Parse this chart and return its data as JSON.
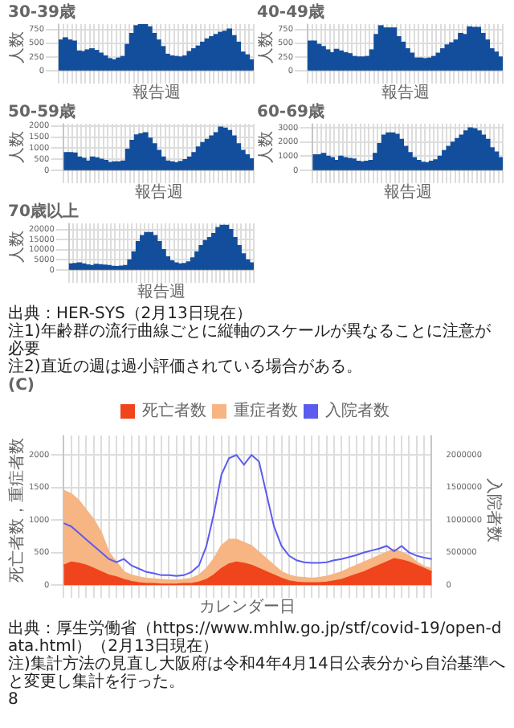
{
  "chart_data": [
    {
      "type": "bar",
      "title": "30-39歳",
      "xlabel": "報告週",
      "ylabel": "人数",
      "color": "#124e9c",
      "grid": true,
      "ylim": [
        0,
        850
      ],
      "yticks": [
        0,
        250,
        500,
        750
      ],
      "categories": [
        null,
        null,
        null,
        null,
        null,
        null,
        null,
        null,
        null,
        null,
        null,
        null,
        null,
        null,
        null,
        null,
        null,
        null,
        null,
        null,
        null,
        null,
        null,
        null,
        null,
        null,
        null,
        null,
        null,
        null,
        null,
        null,
        null,
        null,
        null,
        null,
        null,
        null,
        null,
        null,
        null,
        null,
        null,
        null
      ],
      "values": [
        560,
        600,
        560,
        540,
        360,
        350,
        380,
        400,
        370,
        320,
        270,
        220,
        200,
        230,
        260,
        480,
        680,
        820,
        850,
        840,
        800,
        680,
        560,
        440,
        300,
        270,
        260,
        250,
        270,
        350,
        400,
        450,
        520,
        580,
        620,
        660,
        700,
        720,
        760,
        640,
        520,
        340,
        290,
        200
      ]
    },
    {
      "type": "bar",
      "title": "40-49歳",
      "xlabel": "報告週",
      "ylabel": "人数",
      "color": "#124e9c",
      "grid": true,
      "ylim": [
        0,
        850
      ],
      "yticks": [
        0,
        250,
        500,
        750
      ],
      "categories": [
        null,
        null,
        null,
        null,
        null,
        null,
        null,
        null,
        null,
        null,
        null,
        null,
        null,
        null,
        null,
        null,
        null,
        null,
        null,
        null,
        null,
        null,
        null,
        null,
        null,
        null,
        null,
        null,
        null,
        null,
        null,
        null,
        null,
        null,
        null,
        null,
        null,
        null,
        null,
        null,
        null,
        null,
        null,
        null
      ],
      "values": [
        540,
        540,
        480,
        440,
        380,
        330,
        390,
        360,
        330,
        310,
        260,
        250,
        250,
        260,
        380,
        660,
        820,
        780,
        780,
        780,
        620,
        520,
        400,
        320,
        230,
        230,
        220,
        230,
        260,
        320,
        400,
        470,
        510,
        560,
        680,
        660,
        800,
        790,
        790,
        680,
        560,
        400,
        340,
        250
      ]
    },
    {
      "type": "bar",
      "title": "50-59歳",
      "xlabel": "報告週",
      "ylabel": "人数",
      "color": "#124e9c",
      "grid": true,
      "ylim": [
        0,
        2100
      ],
      "yticks": [
        0,
        500,
        1000,
        1500,
        2000
      ],
      "categories": [
        null,
        null,
        null,
        null,
        null,
        null,
        null,
        null,
        null,
        null,
        null,
        null,
        null,
        null,
        null,
        null,
        null,
        null,
        null,
        null,
        null,
        null,
        null,
        null,
        null,
        null,
        null,
        null,
        null,
        null,
        null,
        null,
        null,
        null,
        null,
        null,
        null,
        null,
        null,
        null,
        null,
        null,
        null
      ],
      "values": [
        800,
        800,
        780,
        600,
        550,
        420,
        600,
        560,
        500,
        450,
        360,
        380,
        380,
        420,
        950,
        1350,
        1600,
        1650,
        1700,
        1450,
        1200,
        900,
        600,
        420,
        380,
        350,
        400,
        480,
        600,
        800,
        1050,
        1250,
        1400,
        1550,
        1700,
        1950,
        1900,
        1800,
        1550,
        1200,
        900,
        700,
        520
      ]
    },
    {
      "type": "bar",
      "title": "60-69歳",
      "xlabel": "報告週",
      "ylabel": "人数",
      "color": "#124e9c",
      "grid": true,
      "ylim": [
        0,
        3300
      ],
      "yticks": [
        0,
        1000,
        2000,
        3000
      ],
      "categories": [
        null,
        null,
        null,
        null,
        null,
        null,
        null,
        null,
        null,
        null,
        null,
        null,
        null,
        null,
        null,
        null,
        null,
        null,
        null,
        null,
        null,
        null,
        null,
        null,
        null,
        null,
        null,
        null,
        null,
        null,
        null,
        null,
        null,
        null,
        null,
        null,
        null,
        null,
        null,
        null,
        null,
        null,
        null,
        null
      ],
      "values": [
        1100,
        1100,
        1200,
        1000,
        900,
        700,
        1000,
        900,
        850,
        800,
        650,
        600,
        650,
        700,
        1200,
        1900,
        2500,
        2650,
        2650,
        2550,
        2200,
        1700,
        1250,
        900,
        700,
        580,
        550,
        650,
        750,
        1000,
        1400,
        1700,
        2000,
        2250,
        2500,
        2800,
        3000,
        2950,
        2800,
        2500,
        2200,
        1600,
        1300,
        900
      ]
    },
    {
      "type": "bar",
      "title": "70歳以上",
      "xlabel": "報告週",
      "ylabel": "人数",
      "color": "#124e9c",
      "grid": true,
      "ylim": [
        0,
        23000
      ],
      "yticks": [
        0,
        5000,
        10000,
        15000,
        20000
      ],
      "categories": [
        null,
        null,
        null,
        null,
        null,
        null,
        null,
        null,
        null,
        null,
        null,
        null,
        null,
        null,
        null,
        null,
        null,
        null,
        null,
        null,
        null,
        null,
        null,
        null,
        null,
        null,
        null,
        null,
        null,
        null,
        null,
        null,
        null,
        null,
        null,
        null,
        null,
        null,
        null,
        null,
        null,
        null,
        null,
        null
      ],
      "values": [
        3000,
        3200,
        3500,
        3000,
        2500,
        2200,
        2800,
        2600,
        2400,
        2200,
        1800,
        1700,
        1900,
        2200,
        5000,
        9000,
        14000,
        17000,
        18500,
        18500,
        17000,
        14000,
        10000,
        6500,
        4500,
        3500,
        3000,
        3200,
        4000,
        6000,
        9000,
        12000,
        14500,
        16000,
        18000,
        21000,
        22000,
        22000,
        20000,
        16000,
        12000,
        8000,
        5000,
        3500
      ],
      "annotations": [
        "出典：HER-SYS（2月13日現在）",
        "注1)年齢群の流行曲線ごとに縦軸のスケールが異なることに注意が必要",
        "注2)直近の週は過小評価されている場合がある。"
      ]
    },
    {
      "type": "area",
      "title": "(C)",
      "xlabel": "カレンダー日",
      "ylabel": "死亡者数，重症者数",
      "y2label": "入院者数",
      "legend": "top",
      "grid": true,
      "ylim": [
        0,
        2300
      ],
      "yticks": [
        0,
        500,
        1000,
        1500,
        2000
      ],
      "y2lim": [
        0,
        2300000
      ],
      "y2ticks": [
        0,
        500000,
        1000000,
        1500000,
        2000000
      ],
      "categories": [
        null,
        null,
        null,
        null,
        null,
        null,
        null,
        null,
        null,
        null,
        null,
        null,
        null,
        null,
        null,
        null,
        null,
        null,
        null,
        null,
        null,
        null,
        null,
        null,
        null,
        null,
        null,
        null,
        null,
        null,
        null,
        null,
        null,
        null,
        null,
        null,
        null,
        null,
        null,
        null,
        null,
        null,
        null,
        null,
        null,
        null,
        null,
        null,
        null,
        null
      ],
      "series": [
        {
          "name": "死亡者数",
          "type": "area",
          "color": "#f0441c",
          "values": [
            300,
            350,
            330,
            300,
            250,
            200,
            150,
            120,
            80,
            50,
            30,
            20,
            20,
            10,
            10,
            10,
            20,
            20,
            40,
            80,
            150,
            250,
            320,
            350,
            330,
            300,
            250,
            200,
            150,
            100,
            60,
            40,
            30,
            30,
            30,
            40,
            60,
            80,
            120,
            160,
            200,
            250,
            300,
            350,
            400,
            380,
            350,
            300,
            250,
            200
          ]
        },
        {
          "name": "重症者数",
          "type": "area",
          "color": "#f6b583",
          "values": [
            1450,
            1400,
            1300,
            1150,
            1000,
            800,
            500,
            350,
            200,
            150,
            120,
            100,
            90,
            80,
            70,
            70,
            80,
            100,
            150,
            250,
            400,
            600,
            700,
            700,
            650,
            600,
            500,
            400,
            300,
            200,
            150,
            120,
            110,
            100,
            110,
            130,
            160,
            200,
            250,
            300,
            350,
            400,
            450,
            500,
            550,
            500,
            450,
            350,
            280,
            250
          ]
        },
        {
          "name": "入院者数",
          "type": "line",
          "axis": "y2",
          "color": "#5b5bf0",
          "values": [
            950000,
            900000,
            800000,
            700000,
            600000,
            500000,
            400000,
            350000,
            400000,
            300000,
            250000,
            200000,
            180000,
            150000,
            150000,
            140000,
            150000,
            200000,
            300000,
            600000,
            1100000,
            1700000,
            1950000,
            2000000,
            1850000,
            2000000,
            1900000,
            1400000,
            900000,
            600000,
            450000,
            380000,
            350000,
            340000,
            340000,
            350000,
            380000,
            400000,
            430000,
            460000,
            500000,
            530000,
            560000,
            600000,
            520000,
            600000,
            500000,
            450000,
            420000,
            400000
          ]
        }
      ],
      "annotations": [
        "出典：厚生労働省（https://www.mhlw.go.jp/stf/covid-19/open-data.html）（2月13日現在）",
        "注)集計方法の見直し大阪府は令和4年4月14日公表分から自治基準へと変更し集計を行った。",
        "8"
      ]
    }
  ]
}
